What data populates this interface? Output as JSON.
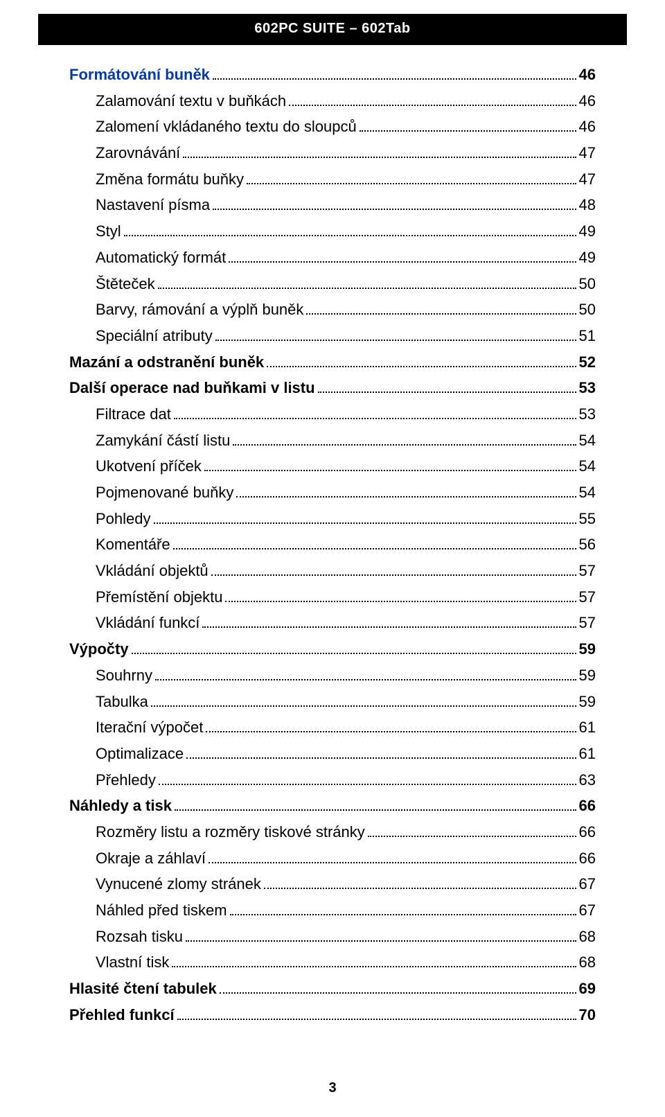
{
  "header": {
    "title": "602PC SUITE – 602Tab"
  },
  "footer": {
    "page": "3"
  },
  "colors": {
    "header_bg": "#000000",
    "header_text": "#ffffff",
    "text": "#000000",
    "blue": "#0a3b9a",
    "dots": "#000000",
    "background": "#ffffff"
  },
  "typography": {
    "body_fontsize_pt": 16,
    "header_fontsize_pt": 15,
    "font_family": "Arial"
  },
  "toc": {
    "entries": [
      {
        "label": "Formátování buněk",
        "page": "46",
        "level": 0,
        "blue": true
      },
      {
        "label": "Zalamování textu v buňkách",
        "page": "46",
        "level": 1,
        "blue": false
      },
      {
        "label": "Zalomení vkládaného textu do sloupců",
        "page": "46",
        "level": 1,
        "blue": false
      },
      {
        "label": "Zarovnávání",
        "page": "47",
        "level": 1,
        "blue": false
      },
      {
        "label": "Změna formátu buňky",
        "page": "47",
        "level": 1,
        "blue": false
      },
      {
        "label": "Nastavení písma",
        "page": "48",
        "level": 1,
        "blue": false
      },
      {
        "label": "Styl",
        "page": "49",
        "level": 1,
        "blue": false
      },
      {
        "label": "Automatický formát",
        "page": "49",
        "level": 1,
        "blue": false
      },
      {
        "label": "Štěteček",
        "page": "50",
        "level": 1,
        "blue": false
      },
      {
        "label": "Barvy, rámování a výplň buněk",
        "page": "50",
        "level": 1,
        "blue": false
      },
      {
        "label": "Speciální atributy",
        "page": "51",
        "level": 1,
        "blue": false
      },
      {
        "label": "Mazání a odstranění buněk",
        "page": "52",
        "level": 0,
        "blue": false
      },
      {
        "label": "Další operace nad buňkami v listu",
        "page": "53",
        "level": 0,
        "blue": false
      },
      {
        "label": "Filtrace dat",
        "page": "53",
        "level": 1,
        "blue": false
      },
      {
        "label": "Zamykání částí listu",
        "page": "54",
        "level": 1,
        "blue": false
      },
      {
        "label": "Ukotvení příček",
        "page": "54",
        "level": 1,
        "blue": false
      },
      {
        "label": "Pojmenované buňky",
        "page": "54",
        "level": 1,
        "blue": false
      },
      {
        "label": "Pohledy",
        "page": "55",
        "level": 1,
        "blue": false
      },
      {
        "label": "Komentáře",
        "page": "56",
        "level": 1,
        "blue": false
      },
      {
        "label": "Vkládání objektů",
        "page": "57",
        "level": 1,
        "blue": false
      },
      {
        "label": "Přemístění objektu",
        "page": "57",
        "level": 1,
        "blue": false
      },
      {
        "label": "Vkládání funkcí",
        "page": "57",
        "level": 1,
        "blue": false
      },
      {
        "label": "Výpočty",
        "page": "59",
        "level": 0,
        "blue": false
      },
      {
        "label": "Souhrny",
        "page": "59",
        "level": 1,
        "blue": false
      },
      {
        "label": "Tabulka",
        "page": "59",
        "level": 1,
        "blue": false
      },
      {
        "label": "Iterační výpočet",
        "page": "61",
        "level": 1,
        "blue": false
      },
      {
        "label": "Optimalizace",
        "page": "61",
        "level": 1,
        "blue": false
      },
      {
        "label": "Přehledy",
        "page": "63",
        "level": 1,
        "blue": false
      },
      {
        "label": "Náhledy a tisk",
        "page": "66",
        "level": 0,
        "blue": false
      },
      {
        "label": "Rozměry listu a rozměry tiskové stránky",
        "page": "66",
        "level": 1,
        "blue": false
      },
      {
        "label": "Okraje a záhlaví",
        "page": "66",
        "level": 1,
        "blue": false
      },
      {
        "label": "Vynucené zlomy stránek",
        "page": "67",
        "level": 1,
        "blue": false
      },
      {
        "label": "Náhled před tiskem",
        "page": "67",
        "level": 1,
        "blue": false
      },
      {
        "label": "Rozsah tisku",
        "page": "68",
        "level": 1,
        "blue": false
      },
      {
        "label": "Vlastní tisk",
        "page": "68",
        "level": 1,
        "blue": false
      },
      {
        "label": "Hlasité čtení tabulek",
        "page": "69",
        "level": 0,
        "blue": false
      },
      {
        "label": "Přehled funkcí",
        "page": "70",
        "level": 0,
        "blue": false
      }
    ]
  }
}
